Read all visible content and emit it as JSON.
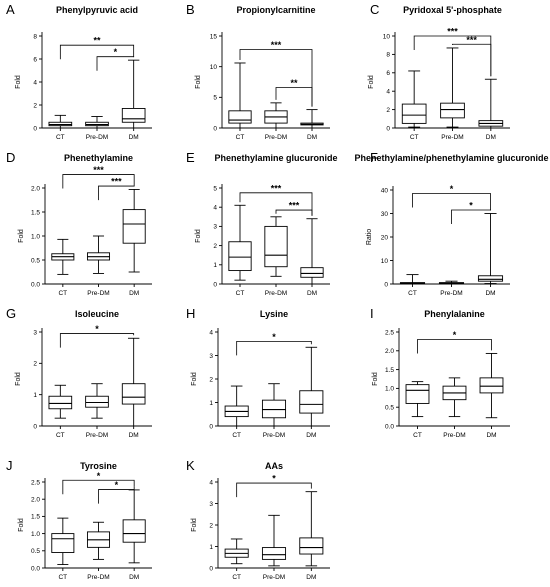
{
  "chart_data": [
    {
      "panel": "A",
      "type": "box",
      "title": "Phenylpyruvic acid",
      "ylabel": "Fold",
      "categories": [
        "CT",
        "Pre-DM",
        "DM"
      ],
      "ylim": [
        0,
        8
      ],
      "yticks": [
        0,
        2,
        4,
        6,
        8
      ],
      "yticks_labels": [
        "0",
        "2",
        "4",
        "6",
        "8"
      ],
      "boxes": [
        {
          "min": 0.0,
          "q1": 0.2,
          "median": 0.3,
          "q3": 0.5,
          "max": 1.1
        },
        {
          "min": 0.0,
          "q1": 0.2,
          "median": 0.3,
          "q3": 0.5,
          "max": 1.0
        },
        {
          "min": 0.0,
          "q1": 0.5,
          "median": 0.8,
          "q3": 1.7,
          "max": 5.9
        }
      ],
      "comparisons": [
        {
          "from": "CT",
          "to": "DM",
          "label": "**",
          "y": 7.2
        },
        {
          "from": "Pre-DM",
          "to": "DM",
          "label": "*",
          "y": 6.2
        }
      ]
    },
    {
      "panel": "B",
      "type": "box",
      "title": "Propionylcarnitine",
      "ylabel": "Fold",
      "categories": [
        "CT",
        "Pre-DM",
        "DM"
      ],
      "ylim": [
        0,
        15
      ],
      "yticks": [
        0,
        5,
        10,
        15
      ],
      "yticks_labels": [
        "0",
        "5",
        "10",
        "15"
      ],
      "boxes": [
        {
          "min": 0.0,
          "q1": 0.8,
          "median": 1.3,
          "q3": 2.8,
          "max": 10.6
        },
        {
          "min": 0.0,
          "q1": 0.8,
          "median": 1.8,
          "q3": 2.8,
          "max": 4.1
        },
        {
          "min": 0.0,
          "q1": 0.5,
          "median": 0.6,
          "q3": 0.8,
          "max": 3.0
        }
      ],
      "comparisons": [
        {
          "from": "CT",
          "to": "DM",
          "label": "***",
          "y": 12.8
        },
        {
          "from": "Pre-DM",
          "to": "DM",
          "label": "**",
          "y": 6.6
        }
      ]
    },
    {
      "panel": "C",
      "type": "box",
      "title": "Pyridoxal 5'-phosphate",
      "ylabel": "Fold",
      "categories": [
        "CT",
        "Pre-DM",
        "DM"
      ],
      "ylim": [
        0,
        10
      ],
      "yticks": [
        0,
        2,
        4,
        6,
        8,
        10
      ],
      "yticks_labels": [
        "0",
        "2",
        "4",
        "6",
        "8",
        "10"
      ],
      "boxes": [
        {
          "min": 0.1,
          "q1": 0.5,
          "median": 1.4,
          "q3": 2.6,
          "max": 6.2
        },
        {
          "min": 0.1,
          "q1": 1.1,
          "median": 2.0,
          "q3": 2.7,
          "max": 8.7
        },
        {
          "min": 0.0,
          "q1": 0.2,
          "median": 0.5,
          "q3": 0.8,
          "max": 5.3
        }
      ],
      "comparisons": [
        {
          "from": "CT",
          "to": "DM",
          "label": "***",
          "y": 10.0
        },
        {
          "from": "Pre-DM",
          "to": "DM",
          "label": "***",
          "y": 9.1
        }
      ]
    },
    {
      "panel": "D",
      "type": "box",
      "title": "Phenethylamine",
      "ylabel": "Fold",
      "categories": [
        "CT",
        "Pre-DM",
        "DM"
      ],
      "ylim": [
        0,
        2.0
      ],
      "yticks": [
        0,
        0.5,
        1.0,
        1.5,
        2.0
      ],
      "yticks_labels": [
        "0.0",
        "0.5",
        "1.0",
        "1.5",
        "2.0"
      ],
      "boxes": [
        {
          "min": 0.2,
          "q1": 0.5,
          "median": 0.57,
          "q3": 0.63,
          "max": 0.93
        },
        {
          "min": 0.22,
          "q1": 0.5,
          "median": 0.57,
          "q3": 0.65,
          "max": 1.0
        },
        {
          "min": 0.25,
          "q1": 0.85,
          "median": 1.25,
          "q3": 1.55,
          "max": 1.97
        }
      ],
      "comparisons": [
        {
          "from": "CT",
          "to": "DM",
          "label": "***",
          "y": 2.28
        },
        {
          "from": "Pre-DM",
          "to": "DM",
          "label": "***",
          "y": 2.04
        }
      ]
    },
    {
      "panel": "E",
      "type": "box",
      "title": "Phenethylamine glucuronide",
      "ylabel": "Fold",
      "categories": [
        "CT",
        "Pre-DM",
        "DM"
      ],
      "ylim": [
        0,
        5
      ],
      "yticks": [
        0,
        1,
        2,
        3,
        4,
        5
      ],
      "yticks_labels": [
        "0",
        "1",
        "2",
        "3",
        "4",
        "5"
      ],
      "boxes": [
        {
          "min": 0.2,
          "q1": 0.7,
          "median": 1.4,
          "q3": 2.2,
          "max": 4.1
        },
        {
          "min": 0.4,
          "q1": 0.9,
          "median": 1.5,
          "q3": 3.0,
          "max": 3.5
        },
        {
          "min": 0.0,
          "q1": 0.35,
          "median": 0.55,
          "q3": 0.85,
          "max": 3.4
        }
      ],
      "comparisons": [
        {
          "from": "CT",
          "to": "DM",
          "label": "***",
          "y": 4.75
        },
        {
          "from": "Pre-DM",
          "to": "DM",
          "label": "***",
          "y": 3.85
        }
      ]
    },
    {
      "panel": "F",
      "type": "box",
      "title": "Phenethylamine/phenethylamine glucuronide",
      "ylabel": "Ratio",
      "categories": [
        "CT",
        "Pre-DM",
        "DM"
      ],
      "ylim": [
        0,
        40
      ],
      "yticks": [
        0,
        10,
        20,
        30,
        40
      ],
      "yticks_labels": [
        "0",
        "10",
        "20",
        "30",
        "40"
      ],
      "boxes": [
        {
          "min": 0.0,
          "q1": 0.2,
          "median": 0.4,
          "q3": 0.6,
          "max": 4.0
        },
        {
          "min": 0.0,
          "q1": 0.2,
          "median": 0.4,
          "q3": 0.6,
          "max": 1.2
        },
        {
          "min": 0.2,
          "q1": 1.2,
          "median": 2.0,
          "q3": 3.5,
          "max": 30.0
        }
      ],
      "comparisons": [
        {
          "from": "CT",
          "to": "DM",
          "label": "*",
          "y": 38.5
        },
        {
          "from": "Pre-DM",
          "to": "DM",
          "label": "*",
          "y": 31.5
        }
      ]
    },
    {
      "panel": "G",
      "type": "box",
      "title": "Isoleucine",
      "ylabel": "Fold",
      "categories": [
        "CT",
        "Pre-DM",
        "DM"
      ],
      "ylim": [
        0,
        3
      ],
      "yticks": [
        0,
        1,
        2,
        3
      ],
      "yticks_labels": [
        "0",
        "1",
        "2",
        "3"
      ],
      "boxes": [
        {
          "min": 0.25,
          "q1": 0.55,
          "median": 0.72,
          "q3": 0.95,
          "max": 1.3
        },
        {
          "min": 0.25,
          "q1": 0.6,
          "median": 0.75,
          "q3": 0.95,
          "max": 1.35
        },
        {
          "min": 0.0,
          "q1": 0.7,
          "median": 0.92,
          "q3": 1.35,
          "max": 2.8
        }
      ],
      "comparisons": [
        {
          "from": "CT",
          "to": "DM",
          "label": "*",
          "y": 2.95
        }
      ]
    },
    {
      "panel": "H",
      "type": "box",
      "title": "Lysine",
      "ylabel": "Fold",
      "categories": [
        "CT",
        "Pre-DM",
        "DM"
      ],
      "ylim": [
        0,
        4
      ],
      "yticks": [
        0,
        1,
        2,
        3,
        4
      ],
      "yticks_labels": [
        "0",
        "1",
        "2",
        "3",
        "4"
      ],
      "boxes": [
        {
          "min": 0.0,
          "q1": 0.4,
          "median": 0.62,
          "q3": 0.85,
          "max": 1.7
        },
        {
          "min": 0.0,
          "q1": 0.35,
          "median": 0.7,
          "q3": 1.1,
          "max": 1.8
        },
        {
          "min": 0.0,
          "q1": 0.55,
          "median": 0.92,
          "q3": 1.5,
          "max": 3.35
        }
      ],
      "comparisons": [
        {
          "from": "CT",
          "to": "DM",
          "label": "*",
          "y": 3.6
        }
      ]
    },
    {
      "panel": "I",
      "type": "box",
      "title": "Phenylalanine",
      "ylabel": "Fold",
      "categories": [
        "CT",
        "Pre-DM",
        "DM"
      ],
      "ylim": [
        0,
        2.5
      ],
      "yticks": [
        0,
        0.5,
        1.0,
        1.5,
        2.0,
        2.5
      ],
      "yticks_labels": [
        "0.0",
        "0.5",
        "1.0",
        "1.5",
        "2.0",
        "2.5"
      ],
      "boxes": [
        {
          "min": 0.25,
          "q1": 0.6,
          "median": 0.95,
          "q3": 1.1,
          "max": 1.18
        },
        {
          "min": 0.25,
          "q1": 0.7,
          "median": 0.88,
          "q3": 1.06,
          "max": 1.28
        },
        {
          "min": 0.22,
          "q1": 0.88,
          "median": 1.06,
          "q3": 1.28,
          "max": 1.93
        }
      ],
      "comparisons": [
        {
          "from": "CT",
          "to": "DM",
          "label": "*",
          "y": 2.3
        }
      ]
    },
    {
      "panel": "J",
      "type": "box",
      "title": "Tyrosine",
      "ylabel": "Fold",
      "categories": [
        "CT",
        "Pre-DM",
        "DM"
      ],
      "ylim": [
        0,
        2.5
      ],
      "yticks": [
        0,
        0.5,
        1.0,
        1.5,
        2.0,
        2.5
      ],
      "yticks_labels": [
        "0.0",
        "0.5",
        "1.0",
        "1.5",
        "2.0",
        "2.5"
      ],
      "boxes": [
        {
          "min": 0.1,
          "q1": 0.45,
          "median": 0.85,
          "q3": 1.0,
          "max": 1.45
        },
        {
          "min": 0.25,
          "q1": 0.6,
          "median": 0.82,
          "q3": 1.05,
          "max": 1.33
        },
        {
          "min": 0.15,
          "q1": 0.75,
          "median": 1.0,
          "q3": 1.4,
          "max": 2.27
        }
      ],
      "comparisons": [
        {
          "from": "CT",
          "to": "DM",
          "label": "*",
          "y": 2.55
        },
        {
          "from": "Pre-DM",
          "to": "DM",
          "label": "*",
          "y": 2.28
        }
      ]
    },
    {
      "panel": "K",
      "type": "box",
      "title": "AAs",
      "ylabel": "Fold",
      "categories": [
        "CT",
        "Pre-DM",
        "DM"
      ],
      "ylim": [
        0,
        4
      ],
      "yticks": [
        0,
        1,
        2,
        3,
        4
      ],
      "yticks_labels": [
        "0",
        "1",
        "2",
        "3",
        "4"
      ],
      "boxes": [
        {
          "min": 0.2,
          "q1": 0.5,
          "median": 0.68,
          "q3": 0.88,
          "max": 1.35
        },
        {
          "min": 0.1,
          "q1": 0.4,
          "median": 0.62,
          "q3": 0.95,
          "max": 2.45
        },
        {
          "min": 0.1,
          "q1": 0.65,
          "median": 0.95,
          "q3": 1.4,
          "max": 3.55
        }
      ],
      "comparisons": [
        {
          "from": "CT",
          "to": "DM",
          "label": "*",
          "y": 3.95
        }
      ]
    }
  ]
}
